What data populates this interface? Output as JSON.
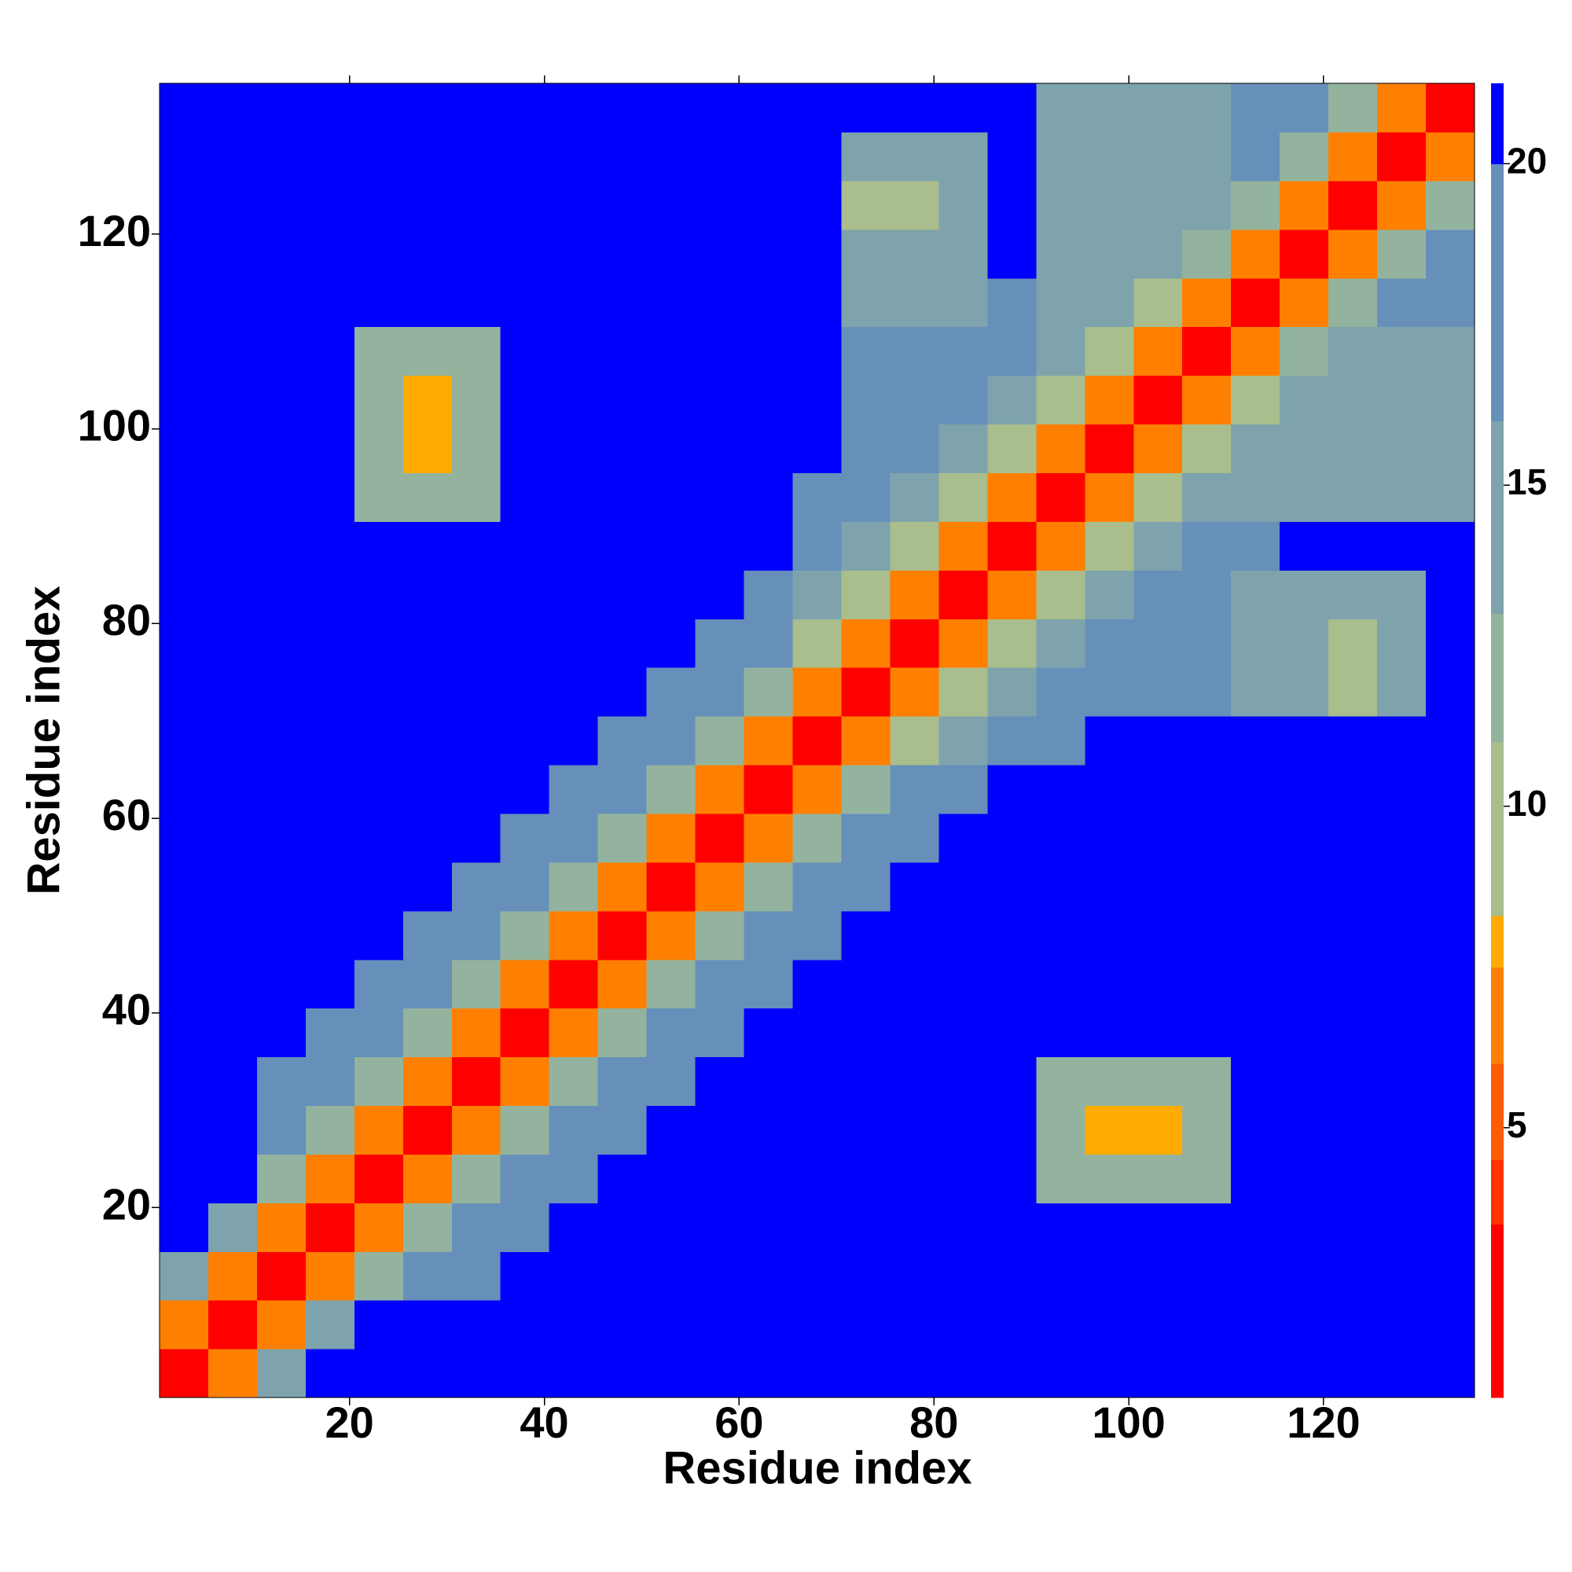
{
  "chart_data": {
    "type": "heatmap",
    "xlabel": "Residue index",
    "ylabel": "Residue index",
    "x": [
      3,
      8,
      13,
      18,
      23,
      28,
      33,
      38,
      43,
      48,
      53,
      58,
      63,
      68,
      73,
      78,
      83,
      88,
      93,
      98,
      103,
      108,
      113,
      118,
      123,
      128,
      133
    ],
    "y": [
      3,
      8,
      13,
      18,
      23,
      28,
      33,
      38,
      43,
      48,
      53,
      58,
      63,
      68,
      73,
      78,
      83,
      88,
      93,
      98,
      103,
      108,
      113,
      118,
      123,
      128,
      133
    ],
    "z": [
      [
        3,
        7,
        15,
        25,
        25,
        25,
        25,
        25,
        25,
        25,
        25,
        25,
        25,
        25,
        25,
        25,
        25,
        25,
        25,
        25,
        25,
        25,
        25,
        25,
        25,
        25,
        25
      ],
      [
        7,
        3,
        7,
        15,
        25,
        25,
        25,
        25,
        25,
        25,
        25,
        25,
        25,
        25,
        25,
        25,
        25,
        25,
        25,
        25,
        25,
        25,
        25,
        25,
        25,
        25,
        25
      ],
      [
        15,
        7,
        3,
        7,
        12,
        16,
        19,
        25,
        25,
        25,
        25,
        25,
        25,
        25,
        25,
        25,
        25,
        25,
        25,
        25,
        25,
        25,
        25,
        25,
        25,
        25,
        25
      ],
      [
        25,
        15,
        7,
        3,
        7,
        12,
        16,
        19,
        25,
        25,
        25,
        25,
        25,
        25,
        25,
        25,
        25,
        25,
        25,
        25,
        25,
        25,
        25,
        25,
        25,
        25,
        25
      ],
      [
        25,
        25,
        12,
        7,
        3,
        7,
        12,
        16,
        19,
        25,
        25,
        25,
        25,
        25,
        25,
        25,
        25,
        25,
        12,
        12,
        12,
        12,
        25,
        25,
        25,
        25,
        25
      ],
      [
        25,
        25,
        16,
        12,
        7,
        3,
        7,
        12,
        16,
        19,
        25,
        25,
        25,
        25,
        25,
        25,
        25,
        25,
        12,
        8,
        8,
        12,
        25,
        25,
        25,
        25,
        25
      ],
      [
        25,
        25,
        19,
        16,
        12,
        7,
        3,
        7,
        12,
        16,
        19,
        25,
        25,
        25,
        25,
        25,
        25,
        25,
        12,
        12,
        12,
        12,
        25,
        25,
        25,
        25,
        25
      ],
      [
        25,
        25,
        25,
        19,
        16,
        12,
        7,
        3,
        7,
        12,
        16,
        19,
        25,
        25,
        25,
        25,
        25,
        25,
        25,
        25,
        25,
        25,
        25,
        25,
        25,
        25,
        25
      ],
      [
        25,
        25,
        25,
        25,
        19,
        16,
        12,
        7,
        3,
        7,
        12,
        16,
        19,
        25,
        25,
        25,
        25,
        25,
        25,
        25,
        25,
        25,
        25,
        25,
        25,
        25,
        25
      ],
      [
        25,
        25,
        25,
        25,
        25,
        19,
        16,
        12,
        7,
        3,
        7,
        12,
        16,
        19,
        25,
        25,
        25,
        25,
        25,
        25,
        25,
        25,
        25,
        25,
        25,
        25,
        25
      ],
      [
        25,
        25,
        25,
        25,
        25,
        25,
        19,
        16,
        12,
        7,
        3,
        7,
        12,
        16,
        19,
        25,
        25,
        25,
        25,
        25,
        25,
        25,
        25,
        25,
        25,
        25,
        25
      ],
      [
        25,
        25,
        25,
        25,
        25,
        25,
        25,
        19,
        16,
        12,
        7,
        3,
        7,
        12,
        16,
        19,
        25,
        25,
        25,
        25,
        25,
        25,
        25,
        25,
        25,
        25,
        25
      ],
      [
        25,
        25,
        25,
        25,
        25,
        25,
        25,
        25,
        19,
        16,
        12,
        7,
        3,
        7,
        12,
        16,
        19,
        25,
        25,
        25,
        25,
        25,
        25,
        25,
        25,
        25,
        25
      ],
      [
        25,
        25,
        25,
        25,
        25,
        25,
        25,
        25,
        25,
        19,
        16,
        12,
        7,
        3,
        6,
        10,
        14,
        17,
        19,
        25,
        25,
        25,
        25,
        25,
        25,
        25,
        25
      ],
      [
        25,
        25,
        25,
        25,
        25,
        25,
        25,
        25,
        25,
        25,
        19,
        16,
        12,
        6,
        3,
        6,
        10,
        14,
        16,
        16,
        16,
        16,
        14,
        14,
        10,
        14,
        25
      ],
      [
        25,
        25,
        25,
        25,
        25,
        25,
        25,
        25,
        25,
        25,
        25,
        19,
        16,
        10,
        6,
        3,
        6,
        10,
        14,
        16,
        16,
        16,
        14,
        14,
        9,
        14,
        25
      ],
      [
        25,
        25,
        25,
        25,
        25,
        25,
        25,
        25,
        25,
        25,
        25,
        25,
        19,
        14,
        10,
        6,
        3,
        6,
        10,
        14,
        16,
        16,
        14,
        14,
        14,
        14,
        25
      ],
      [
        25,
        25,
        25,
        25,
        25,
        25,
        25,
        25,
        25,
        25,
        25,
        25,
        25,
        17,
        14,
        10,
        6,
        3,
        6,
        10,
        14,
        16,
        19,
        25,
        25,
        25,
        25
      ],
      [
        25,
        25,
        25,
        25,
        12,
        12,
        12,
        25,
        25,
        25,
        25,
        25,
        25,
        19,
        16,
        14,
        10,
        6,
        3,
        6,
        10,
        14,
        15,
        15,
        15,
        15,
        15
      ],
      [
        25,
        25,
        25,
        25,
        12,
        8,
        12,
        25,
        25,
        25,
        25,
        25,
        25,
        25,
        16,
        16,
        14,
        10,
        6,
        3,
        6,
        10,
        14,
        15,
        15,
        15,
        15
      ],
      [
        25,
        25,
        25,
        25,
        12,
        8,
        12,
        25,
        25,
        25,
        25,
        25,
        25,
        25,
        16,
        16,
        16,
        14,
        10,
        6,
        3,
        6,
        10,
        15,
        15,
        15,
        15
      ],
      [
        25,
        25,
        25,
        25,
        12,
        12,
        12,
        25,
        25,
        25,
        25,
        25,
        25,
        25,
        16,
        16,
        16,
        16,
        14,
        10,
        6,
        3,
        6,
        12,
        15,
        15,
        15
      ],
      [
        25,
        25,
        25,
        25,
        25,
        25,
        25,
        25,
        25,
        25,
        25,
        25,
        25,
        25,
        14,
        14,
        14,
        19,
        15,
        14,
        10,
        6,
        3,
        7,
        12,
        16,
        19
      ],
      [
        25,
        25,
        25,
        25,
        25,
        25,
        25,
        25,
        25,
        25,
        25,
        25,
        25,
        25,
        14,
        14,
        14,
        25,
        15,
        15,
        15,
        12,
        7,
        3,
        7,
        12,
        16
      ],
      [
        25,
        25,
        25,
        25,
        25,
        25,
        25,
        25,
        25,
        25,
        25,
        25,
        25,
        25,
        10,
        9,
        14,
        25,
        15,
        15,
        15,
        15,
        12,
        7,
        3,
        7,
        12
      ],
      [
        25,
        25,
        25,
        25,
        25,
        25,
        25,
        25,
        25,
        25,
        25,
        25,
        25,
        25,
        14,
        14,
        14,
        25,
        15,
        15,
        15,
        15,
        16,
        12,
        7,
        3,
        7
      ],
      [
        25,
        25,
        25,
        25,
        25,
        25,
        25,
        25,
        25,
        25,
        25,
        25,
        25,
        25,
        25,
        25,
        25,
        25,
        15,
        15,
        15,
        15,
        19,
        16,
        12,
        7,
        3
      ]
    ],
    "xlim": [
      0.5,
      135.5
    ],
    "ylim": [
      0.5,
      135.5
    ],
    "xticks": [
      20,
      40,
      60,
      80,
      100,
      120
    ],
    "yticks": [
      20,
      40,
      60,
      80,
      100,
      120
    ],
    "clim": [
      0.8,
      21.25
    ],
    "cticks": [
      5,
      10,
      15,
      20
    ],
    "colorscale": [
      [
        0.8,
        "#ff0000"
      ],
      [
        3.5,
        "#ff3300"
      ],
      [
        4.5,
        "#ff5a00"
      ],
      [
        6,
        "#ff8000"
      ],
      [
        7.5,
        "#ffaa00"
      ],
      [
        8.3,
        "#a9bd8d"
      ],
      [
        11,
        "#93b39e"
      ],
      [
        13,
        "#7ea3ac"
      ],
      [
        16,
        "#6690ba"
      ],
      [
        20,
        "#0000ff"
      ]
    ]
  }
}
